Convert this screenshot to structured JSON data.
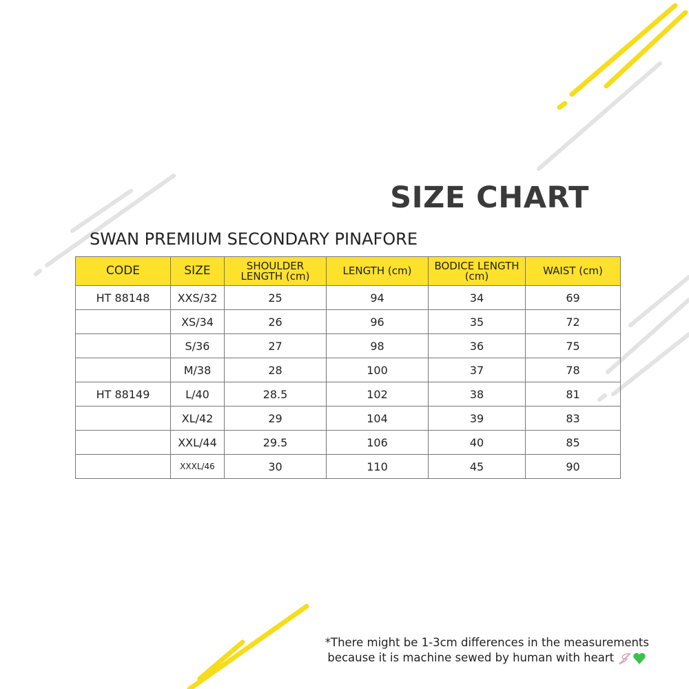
{
  "title": "SIZE CHART",
  "subtitle": "SWAN PREMIUM SECONDARY PINAFORE",
  "colors": {
    "header_bg": "#fde12a",
    "accent_yellow": "#f7dc1c",
    "decor_gray": "#e3e3e3"
  },
  "table": {
    "headers": [
      "CODE",
      "SIZE",
      "SHOULDER LENGTH (cm)",
      "LENGTH (cm)",
      "BODICE LENGTH (cm)",
      "WAIST (cm)"
    ],
    "rows": [
      [
        "HT 88148",
        "XXS/32",
        "25",
        "94",
        "34",
        "69"
      ],
      [
        "",
        "XS/34",
        "26",
        "96",
        "35",
        "72"
      ],
      [
        "",
        "S/36",
        "27",
        "98",
        "36",
        "75"
      ],
      [
        "",
        "M/38",
        "28",
        "100",
        "37",
        "78"
      ],
      [
        "HT 88149",
        "L/40",
        "28.5",
        "102",
        "38",
        "81"
      ],
      [
        "",
        "XL/42",
        "29",
        "104",
        "39",
        "83"
      ],
      [
        "",
        "XXL/44",
        "29.5",
        "106",
        "40",
        "85"
      ],
      [
        "",
        "XXXL/46",
        "30",
        "110",
        "45",
        "90"
      ]
    ]
  },
  "note": {
    "line1": "*There might be 1-3cm differences in the measurements",
    "line2": "because it is machine sewed by human with heart",
    "icons": [
      "sewing-needle-icon",
      "green-heart-icon"
    ]
  }
}
